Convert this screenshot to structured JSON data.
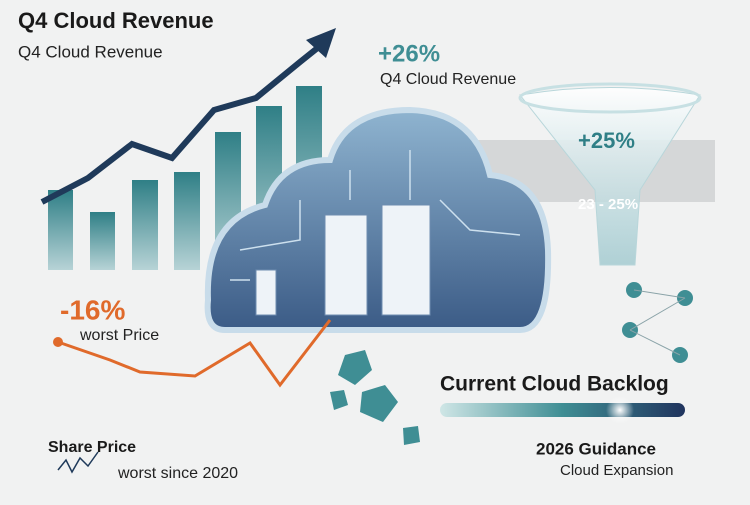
{
  "header": {
    "title": "Q4 Cloud Revenue",
    "subtitle": "Q4 Cloud Revenue"
  },
  "revenue_growth": {
    "value": "+26%",
    "label": "Q4 Cloud Revenue"
  },
  "funnel": {
    "value": "+25%",
    "range": "23 - 25%"
  },
  "price_drop": {
    "value": "-16%",
    "label": "worst Price"
  },
  "share_price": {
    "title": "Share Price",
    "note": "worst since 2020"
  },
  "backlog": {
    "title": "Current Cloud Backlog"
  },
  "guidance": {
    "title": "2026 Guidance",
    "subtitle": "Cloud Expansion"
  }
}
